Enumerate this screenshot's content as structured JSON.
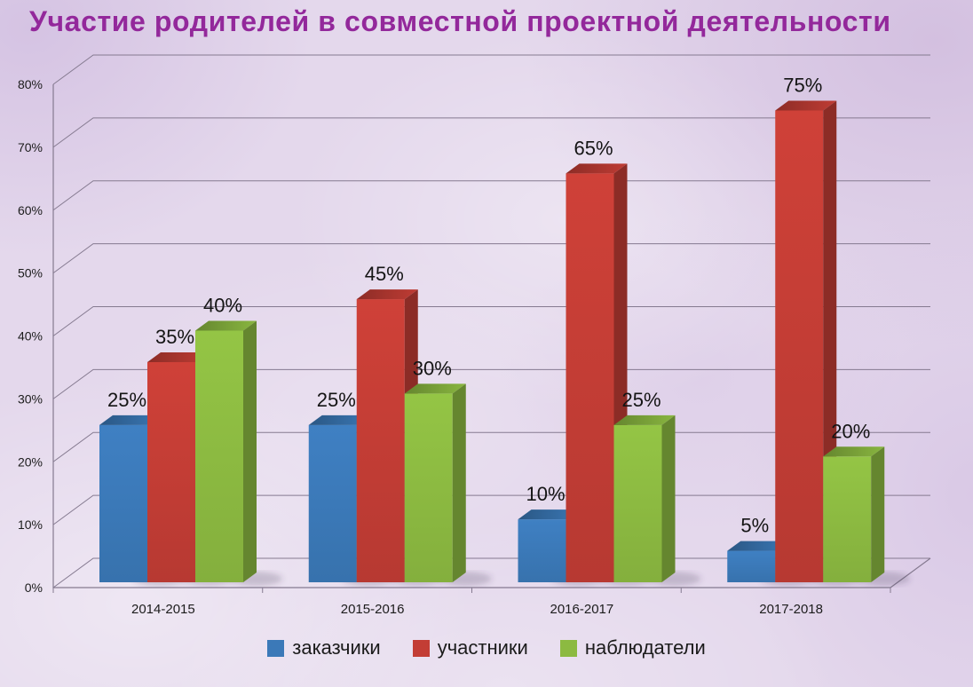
{
  "page": {
    "background_color": "#e4d8ec",
    "text_color": "#1b1b1b",
    "grid_color": "#857a90"
  },
  "chart_data": {
    "type": "bar",
    "variant": "3d-clustered-column",
    "title": "Участие родителей в совместной проектной деятельности",
    "title_color": "#93289b",
    "categories": [
      "2014-2015",
      "2015-2016",
      "2016-2017",
      "2017-2018"
    ],
    "series": [
      {
        "name": "заказчики",
        "color": "#3b79b8",
        "values": [
          25,
          25,
          10,
          5
        ]
      },
      {
        "name": "участники",
        "color": "#c33d35",
        "values": [
          35,
          45,
          65,
          75
        ]
      },
      {
        "name": "наблюдатели",
        "color": "#8cba41",
        "values": [
          40,
          30,
          25,
          20
        ]
      }
    ],
    "data_label_suffix": "%",
    "data_label_color": "#141414",
    "ylim": [
      0,
      80
    ],
    "ytick_step": 10,
    "ytick_labels": [
      "0%",
      "10%",
      "20%",
      "30%",
      "40%",
      "50%",
      "60%",
      "70%",
      "80%"
    ],
    "grid": true,
    "legend_position": "bottom"
  }
}
